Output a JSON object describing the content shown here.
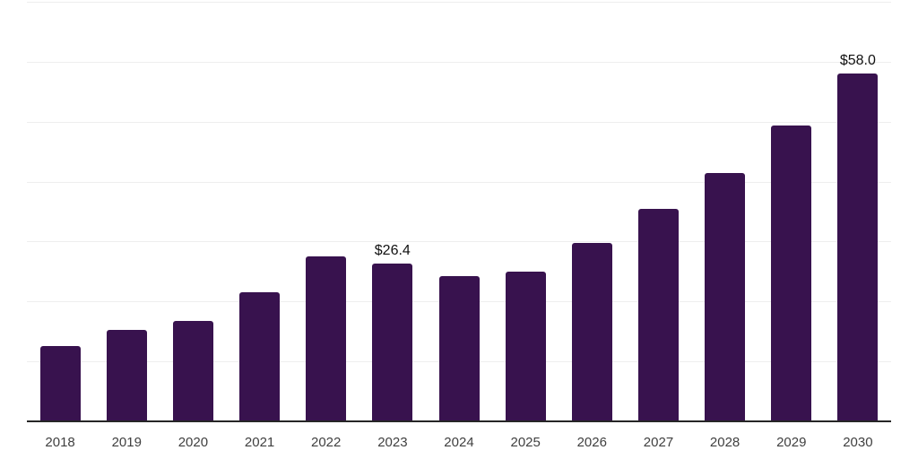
{
  "page": {
    "background": "#ffffff"
  },
  "chart_data": {
    "type": "bar",
    "title": "",
    "xlabel": "",
    "ylabel": "",
    "categories": [
      "2018",
      "2019",
      "2020",
      "2021",
      "2022",
      "2023",
      "2024",
      "2025",
      "2026",
      "2027",
      "2028",
      "2029",
      "2030"
    ],
    "values": [
      12.5,
      15.3,
      16.7,
      21.5,
      27.6,
      26.4,
      24.2,
      25.0,
      29.8,
      35.4,
      41.4,
      49.3,
      58.0
    ],
    "unit_prefix": "$",
    "annotations": [
      {
        "category": "2023",
        "text": "$26.4"
      },
      {
        "category": "2030",
        "text": "$58.0"
      }
    ],
    "ylim": [
      0,
      70
    ],
    "grid_step": 10,
    "grid": "horizontal-only",
    "legend_position": "none",
    "y_axis_labels_visible": false,
    "colors": {
      "bar": "#38124E",
      "gridline": "#eeeeee",
      "axis_line": "#262626",
      "tick_label": "#404040",
      "value_label": "#111111",
      "background": "#ffffff"
    }
  }
}
